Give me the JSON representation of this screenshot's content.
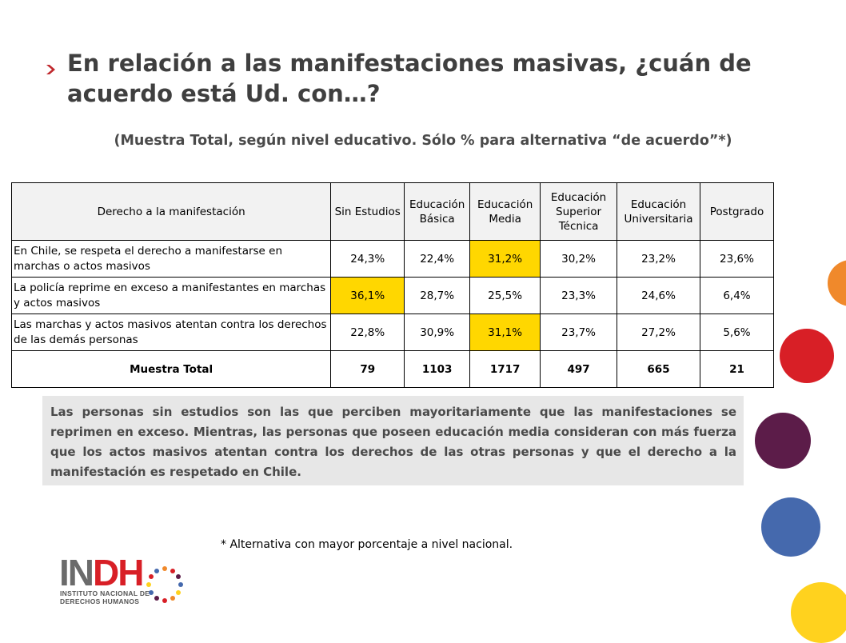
{
  "slide": {
    "title": "En relación a las manifestaciones masivas, ¿cuán de acuerdo está Ud. con…?",
    "subtitle": "(Muestra Total, según nivel educativo. Sólo % para alternativa “de acuerdo”*)",
    "table": {
      "headers": [
        "Derecho a la manifestación",
        "Sin Estudios",
        "Educación Básica",
        "Educación Media",
        "Educación Superior Técnica",
        "Educación Universitaria",
        "Postgrado"
      ],
      "rows": [
        {
          "label": "En Chile, se respeta el derecho a manifestarse en marchas o actos masivos",
          "values": [
            "24,3%",
            "22,4%",
            "31,2%",
            "30,2%",
            "23,2%",
            "23,6%"
          ],
          "highlight_index": 2
        },
        {
          "label": "La policía reprime en exceso a manifestantes en marchas y actos masivos",
          "values": [
            "36,1%",
            "28,7%",
            "25,5%",
            "23,3%",
            "24,6%",
            "6,4%"
          ],
          "highlight_index": 0
        },
        {
          "label": "Las marchas y actos masivos atentan contra los derechos de las demás personas",
          "values": [
            "22,8%",
            "30,9%",
            "31,1%",
            "23,7%",
            "27,2%",
            "5,6%"
          ],
          "highlight_index": 2
        }
      ],
      "total_row": {
        "label": "Muestra Total",
        "values": [
          "79",
          "1103",
          "1717",
          "497",
          "665",
          "21"
        ]
      },
      "highlight_color": "#ffd700",
      "header_bg": "#f2f2f2"
    },
    "summary": "Las personas sin estudios son las que perciben mayoritariamente que las manifestaciones se reprimen en exceso. Mientras, las personas que poseen educación media consideran con más fuerza que los actos masivos atentan contra los derechos de las otras personas y que el derecho a la manifestación es respetado en Chile.",
    "footnote": "* Alternativa con mayor porcentaje a nivel nacional.",
    "logo": {
      "word_gray": "IN",
      "word_red": "DH",
      "line1": "INSTITUTO NACIONAL DE",
      "line2": "DERECHOS HUMANOS"
    },
    "colors": {
      "title": "#3f3f3f",
      "bullet": "#c0282d",
      "circle_orange": "#f0892b",
      "circle_red": "#d81f26",
      "circle_purple": "#5c1c49",
      "circle_blue": "#4569ad",
      "circle_yellow": "#ffd21e"
    },
    "icons": {
      "bullet": "chevron-right-icon"
    }
  }
}
